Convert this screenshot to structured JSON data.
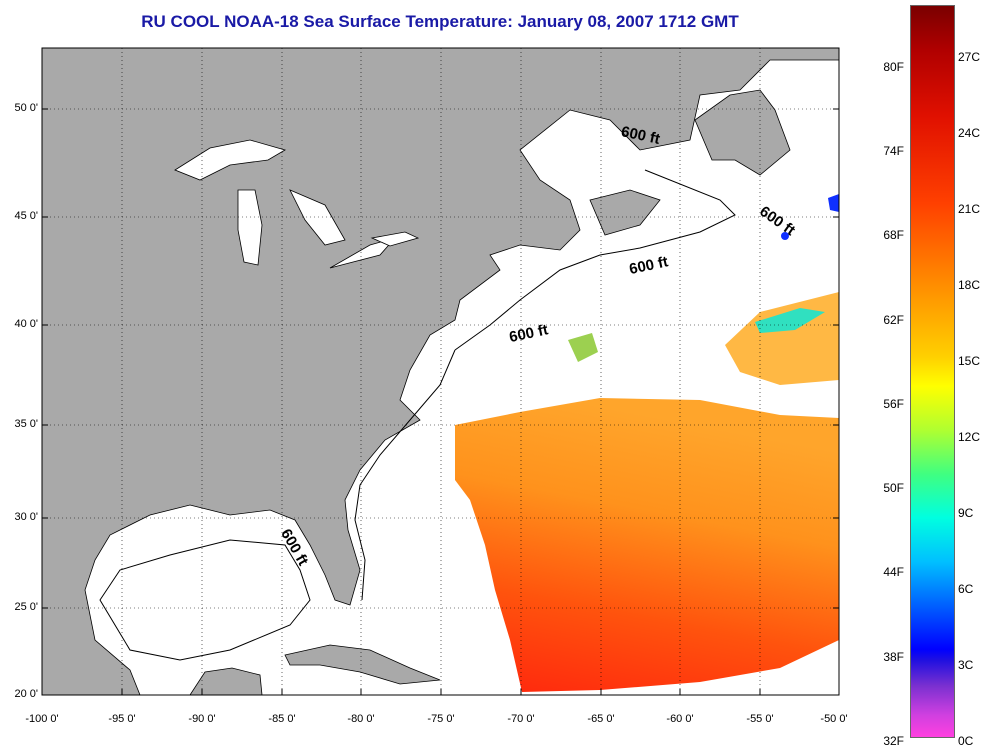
{
  "title": "RU COOL  NOAA-18  Sea Surface Temperature:  January 08, 2007 1712 GMT",
  "lat_labels": [
    "50 0'",
    "45 0'",
    "40 0'",
    "35 0'",
    "30 0'",
    "25 0'",
    "20 0'"
  ],
  "lon_labels": [
    "-100 0'",
    "-95 0'",
    "-90 0'",
    "-85 0'",
    "-80 0'",
    "-75 0'",
    "-70 0'",
    "-65 0'",
    "-60 0'",
    "-55 0'",
    "-50 0'"
  ],
  "isobath_label": "600 ft",
  "colorbar": {
    "fahrenheit": [
      "80F",
      "74F",
      "68F",
      "62F",
      "56F",
      "50F",
      "44F",
      "38F",
      "32F"
    ],
    "celsius": [
      "27C",
      "24C",
      "21C",
      "18C",
      "15C",
      "12C",
      "9C",
      "6C",
      "3C",
      "0C"
    ]
  },
  "colors": {
    "land": "#a9a9a9",
    "title": "#1a1aa6"
  }
}
